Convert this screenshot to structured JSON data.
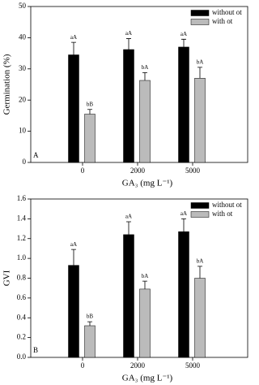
{
  "chart_data": [
    {
      "type": "bar",
      "panel_label": "A",
      "ylabel": "Germination (%)",
      "xlabel": "GA₃ (mg L⁻¹)",
      "categories": [
        "0",
        "2000",
        "5000"
      ],
      "series": [
        {
          "name": "without ot",
          "color": "#000000",
          "values": [
            34.5,
            36.2,
            37.0
          ],
          "errors": [
            4.0,
            3.5,
            2.5
          ],
          "value_labels": [
            "aA",
            "aA",
            "aA"
          ]
        },
        {
          "name": "with ot",
          "color": "#bbbbbb",
          "values": [
            15.5,
            26.3,
            27.0
          ],
          "errors": [
            1.5,
            2.5,
            3.5
          ],
          "value_labels": [
            "bB",
            "bA",
            "bA"
          ]
        }
      ],
      "ylim": [
        0,
        50
      ],
      "yticks": [
        0,
        10,
        20,
        30,
        40,
        50
      ],
      "legend": "top-right"
    },
    {
      "type": "bar",
      "panel_label": "B",
      "ylabel": "GVI",
      "xlabel": "GA₃ (mg L⁻¹)",
      "categories": [
        "0",
        "2000",
        "5000"
      ],
      "series": [
        {
          "name": "without ot",
          "color": "#000000",
          "values": [
            0.93,
            1.24,
            1.27
          ],
          "errors": [
            0.16,
            0.13,
            0.13
          ],
          "value_labels": [
            "aA",
            "aA",
            "aA"
          ]
        },
        {
          "name": "with ot",
          "color": "#bbbbbb",
          "values": [
            0.32,
            0.69,
            0.8
          ],
          "errors": [
            0.04,
            0.08,
            0.12
          ],
          "value_labels": [
            "bB",
            "bA",
            "bA"
          ]
        }
      ],
      "ylim": [
        0,
        1.6
      ],
      "yticks": [
        {
          "value": 0,
          "label": "0.0"
        },
        0.2,
        0.4,
        0.6,
        0.8,
        {
          "value": 1,
          "label": "1.0"
        },
        1.2,
        1.4,
        1.6
      ],
      "legend": "top-right"
    }
  ]
}
